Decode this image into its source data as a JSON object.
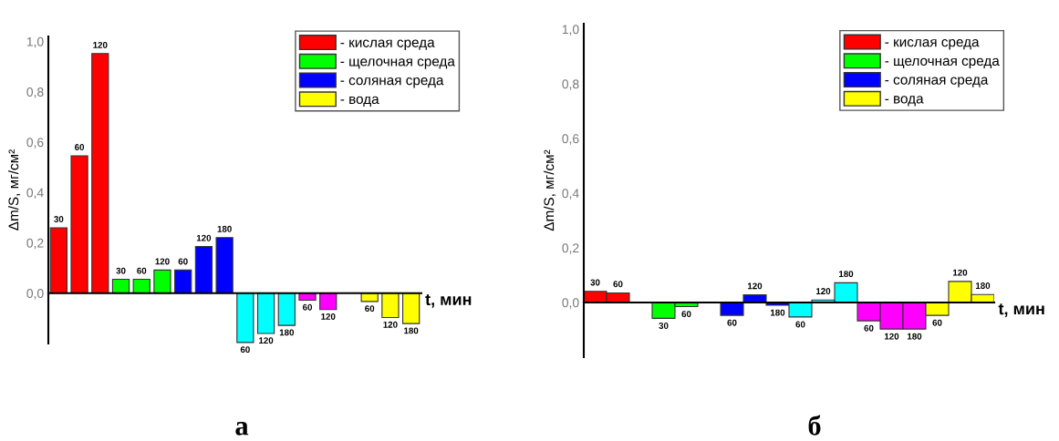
{
  "chart_data": [
    {
      "type": "bar",
      "title": "а",
      "xlabel": "t, мин",
      "ylabel": "Δm/S, мг/см²",
      "ylim": [
        -0.2,
        1.02
      ],
      "yticks": [
        {
          "value": 0,
          "label": "0,0"
        },
        {
          "value": 0.2,
          "label": "0,2"
        },
        {
          "value": 0.4,
          "label": "0,4"
        },
        {
          "value": 0.6,
          "label": "0,6"
        },
        {
          "value": 0.8,
          "label": "0,8"
        },
        {
          "value": 1.0,
          "label": "1,0"
        }
      ],
      "categories": [
        null,
        null,
        null,
        null,
        null,
        null,
        null,
        null,
        null,
        null,
        null,
        null,
        null,
        null,
        null,
        null,
        null,
        null
      ],
      "legend": "top right",
      "series": [
        {
          "name": "- кислая среда",
          "color": "#ff0000",
          "values": [
            0.26,
            0.546,
            0.952,
            null,
            null,
            null,
            null,
            null,
            null,
            null,
            null,
            null,
            null,
            null,
            null,
            null,
            null,
            null
          ]
        },
        {
          "name": "- щелочная среда",
          "color": "#00ff00",
          "values": [
            null,
            null,
            null,
            0.055,
            0.055,
            0.092,
            null,
            null,
            null,
            null,
            null,
            null,
            null,
            null,
            null,
            null,
            null,
            null
          ]
        },
        {
          "name": "- соляная среда",
          "color": "#0000ff",
          "values": [
            null,
            null,
            null,
            null,
            null,
            null,
            0.092,
            0.185,
            0.221,
            null,
            null,
            null,
            null,
            null,
            null,
            null,
            null,
            null
          ]
        },
        {
          "color": "#00ffff",
          "values": [
            null,
            null,
            null,
            null,
            null,
            null,
            null,
            null,
            null,
            -0.196,
            -0.16,
            -0.128,
            null,
            null,
            null,
            null,
            null,
            null
          ]
        },
        {
          "color": "#ff00ff",
          "values": [
            null,
            null,
            null,
            null,
            null,
            null,
            null,
            null,
            null,
            null,
            null,
            null,
            -0.028,
            -0.065,
            null,
            null,
            null,
            null
          ]
        },
        {
          "name": "- вода",
          "color": "#ffff00",
          "values": [
            null,
            null,
            null,
            null,
            null,
            null,
            null,
            null,
            null,
            null,
            null,
            null,
            null,
            null,
            null,
            -0.033,
            -0.097,
            -0.121
          ]
        }
      ],
      "annotations": [
        "30",
        "60",
        "120",
        "30",
        "60",
        "120",
        "60",
        "120",
        "180",
        "60",
        "120",
        "180",
        "60",
        "120",
        "60",
        "120",
        "180"
      ]
    },
    {
      "type": "bar",
      "title": "б",
      "xlabel": "t, мин",
      "ylabel": "Δm/S, мг/см²",
      "ylim": [
        -0.2,
        1.02
      ],
      "yticks": [
        {
          "value": 0,
          "label": "0,0"
        },
        {
          "value": 0.2,
          "label": "0,2"
        },
        {
          "value": 0.4,
          "label": "0,4"
        },
        {
          "value": 0.6,
          "label": "0,6"
        },
        {
          "value": 0.8,
          "label": "0,8"
        },
        {
          "value": 1.0,
          "label": "1,0"
        }
      ],
      "categories": [
        null,
        null,
        null,
        null,
        null,
        null,
        null,
        null,
        null,
        null,
        null,
        null,
        null,
        null,
        null,
        null,
        null,
        null
      ],
      "legend": "top right",
      "series": [
        {
          "name": "- кислая среда",
          "color": "#ff0000",
          "values": [
            0.041,
            0.035,
            null,
            null,
            null,
            null,
            null,
            null,
            null,
            null,
            null,
            null,
            null,
            null,
            null,
            null,
            null,
            null
          ]
        },
        {
          "name": "- щелочная среда",
          "color": "#00ff00",
          "values": [
            null,
            null,
            null,
            -0.058,
            -0.015,
            null,
            null,
            null,
            null,
            null,
            null,
            null,
            null,
            null,
            null,
            null,
            null,
            null
          ]
        },
        {
          "name": "- соляная среда",
          "color": "#0000ff",
          "values": [
            null,
            null,
            null,
            null,
            null,
            null,
            -0.047,
            0.028,
            -0.01,
            null,
            null,
            null,
            null,
            null,
            null,
            null,
            null,
            null
          ]
        },
        {
          "color": "#00ffff",
          "values": [
            null,
            null,
            null,
            null,
            null,
            null,
            null,
            null,
            null,
            -0.053,
            0.009,
            0.072,
            null,
            null,
            null,
            null,
            null,
            null
          ]
        },
        {
          "color": "#ff00ff",
          "values": [
            null,
            null,
            null,
            null,
            null,
            null,
            null,
            null,
            null,
            null,
            null,
            null,
            -0.067,
            -0.097,
            -0.097,
            null,
            null,
            null
          ]
        },
        {
          "name": "- вода",
          "color": "#ffff00",
          "values": [
            null,
            null,
            null,
            null,
            null,
            null,
            null,
            null,
            null,
            null,
            null,
            null,
            null,
            null,
            null,
            -0.047,
            0.077,
            0.029
          ]
        }
      ],
      "annotations": [
        "30",
        "60",
        "30",
        "60",
        "60",
        "120",
        "180",
        "60",
        "120",
        "180",
        "60",
        "120",
        "180",
        "60",
        "120",
        "180"
      ]
    }
  ]
}
